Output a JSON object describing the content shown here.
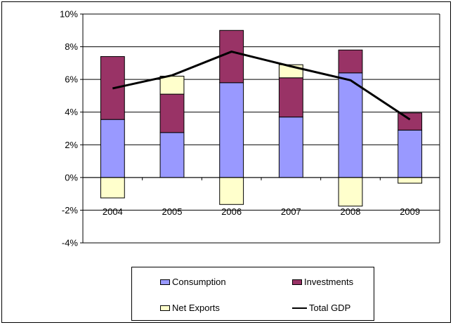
{
  "chart_data": {
    "type": "bar",
    "stacked": true,
    "categories": [
      "2004",
      "2005",
      "2006",
      "2007",
      "2008",
      "2009"
    ],
    "series": [
      {
        "name": "Consumption",
        "kind": "bar",
        "color": "#9999FF",
        "values": [
          3.55,
          2.75,
          5.8,
          3.7,
          6.4,
          2.9
        ]
      },
      {
        "name": "Investments",
        "kind": "bar",
        "color": "#993366",
        "values": [
          3.85,
          2.35,
          3.2,
          2.4,
          1.4,
          1.05
        ]
      },
      {
        "name": "Net Exports",
        "kind": "bar",
        "color": "#FFFFCC",
        "values": [
          -1.25,
          1.1,
          -1.65,
          0.8,
          -1.75,
          -0.35
        ]
      },
      {
        "name": "Total GDP",
        "kind": "line",
        "color": "#000000",
        "values": [
          5.45,
          6.25,
          7.7,
          6.8,
          5.95,
          3.55
        ]
      }
    ],
    "ylim": [
      -4,
      10
    ],
    "yticks": [
      "-4%",
      "-2%",
      "0%",
      "2%",
      "4%",
      "6%",
      "8%",
      "10%"
    ],
    "grid": true,
    "legend_position": "bottom",
    "xlabel": "",
    "ylabel": "",
    "title": ""
  }
}
